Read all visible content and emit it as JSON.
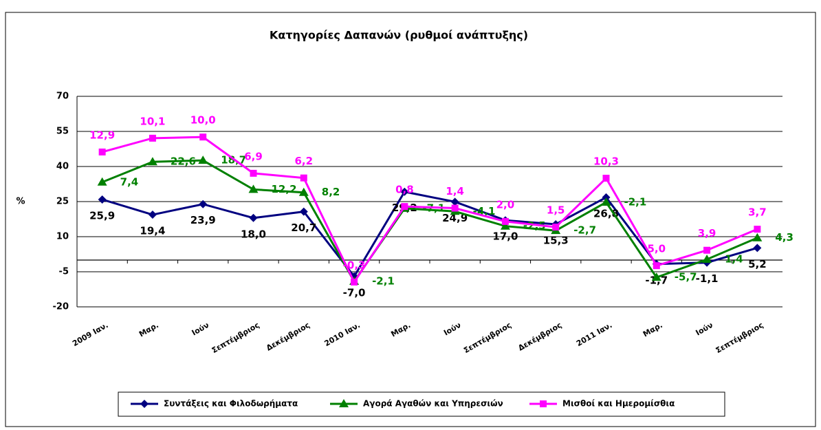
{
  "chart_data": {
    "type": "line",
    "stacked": true,
    "title": "Κατηγορίες Δαπανών (ρυθμοί ανάπτυξης)",
    "y_label": "%",
    "categories": [
      "2009 Ιαν.",
      "Μαρ.",
      "Ιούν",
      "Σεπτέμβριος",
      "Δεκέμβριος",
      "2010 Ιαν.",
      "Μαρ.",
      "Ιούν",
      "Σεπτέμβριος",
      "Δεκέμβριος",
      "2011 Ιαν.",
      "Μαρ.",
      "Ιούν",
      "Σεπτέμβριος"
    ],
    "series": [
      {
        "name": "Συντάξεις και Φιλοδωρήματα",
        "color": "#000080",
        "label_color": "#000000",
        "marker": "diamond",
        "values": [
          25.9,
          19.4,
          23.9,
          18.0,
          20.7,
          -7.0,
          29.2,
          24.9,
          17.0,
          15.3,
          26.8,
          -1.7,
          -1.1,
          5.2
        ],
        "value_labels": [
          "25,9",
          "19,4",
          "23,9",
          "18,0",
          "20,7",
          "-7,0",
          "29,2",
          "24,9",
          "17,0",
          "15,3",
          "26,8",
          "-1,7",
          "-1,1",
          "5,2"
        ]
      },
      {
        "name": "Αγορά Αγαθών και Υπηρεσιών",
        "color": "#008000",
        "label_color": "#008000",
        "marker": "triangle",
        "values": [
          7.4,
          22.6,
          18.7,
          12.2,
          8.2,
          -2.1,
          -7.1,
          -4.1,
          -2.5,
          -2.7,
          -2.1,
          -5.7,
          1.4,
          4.3
        ],
        "value_labels": [
          "7,4",
          "22,6",
          "18,7",
          "12,2",
          "8,2",
          "-2,1",
          "-7,1",
          "-4,1",
          "-2,5",
          "-2,7",
          "-2,1",
          "-5,7",
          "1,4",
          "4,3"
        ]
      },
      {
        "name": "Μισθοί και Ημερομίσθια",
        "color": "#ff00ff",
        "label_color": "#ff00ff",
        "marker": "square",
        "values": [
          12.9,
          10.1,
          10.0,
          6.9,
          6.2,
          -0.3,
          0.8,
          1.4,
          2.0,
          1.5,
          10.3,
          5.0,
          3.9,
          3.7
        ],
        "value_labels": [
          "12,9",
          "10,1",
          "10,0",
          "6,9",
          "6,2",
          "-0,3",
          "0,8",
          "1,4",
          "2,0",
          "1,5",
          "10,3",
          "5,0",
          "3,9",
          "3,7"
        ]
      }
    ],
    "ylim": [
      -20,
      70
    ],
    "yticks": [
      -20,
      -5,
      10,
      25,
      40,
      55,
      70
    ],
    "grid": true,
    "legend": "bottom"
  }
}
